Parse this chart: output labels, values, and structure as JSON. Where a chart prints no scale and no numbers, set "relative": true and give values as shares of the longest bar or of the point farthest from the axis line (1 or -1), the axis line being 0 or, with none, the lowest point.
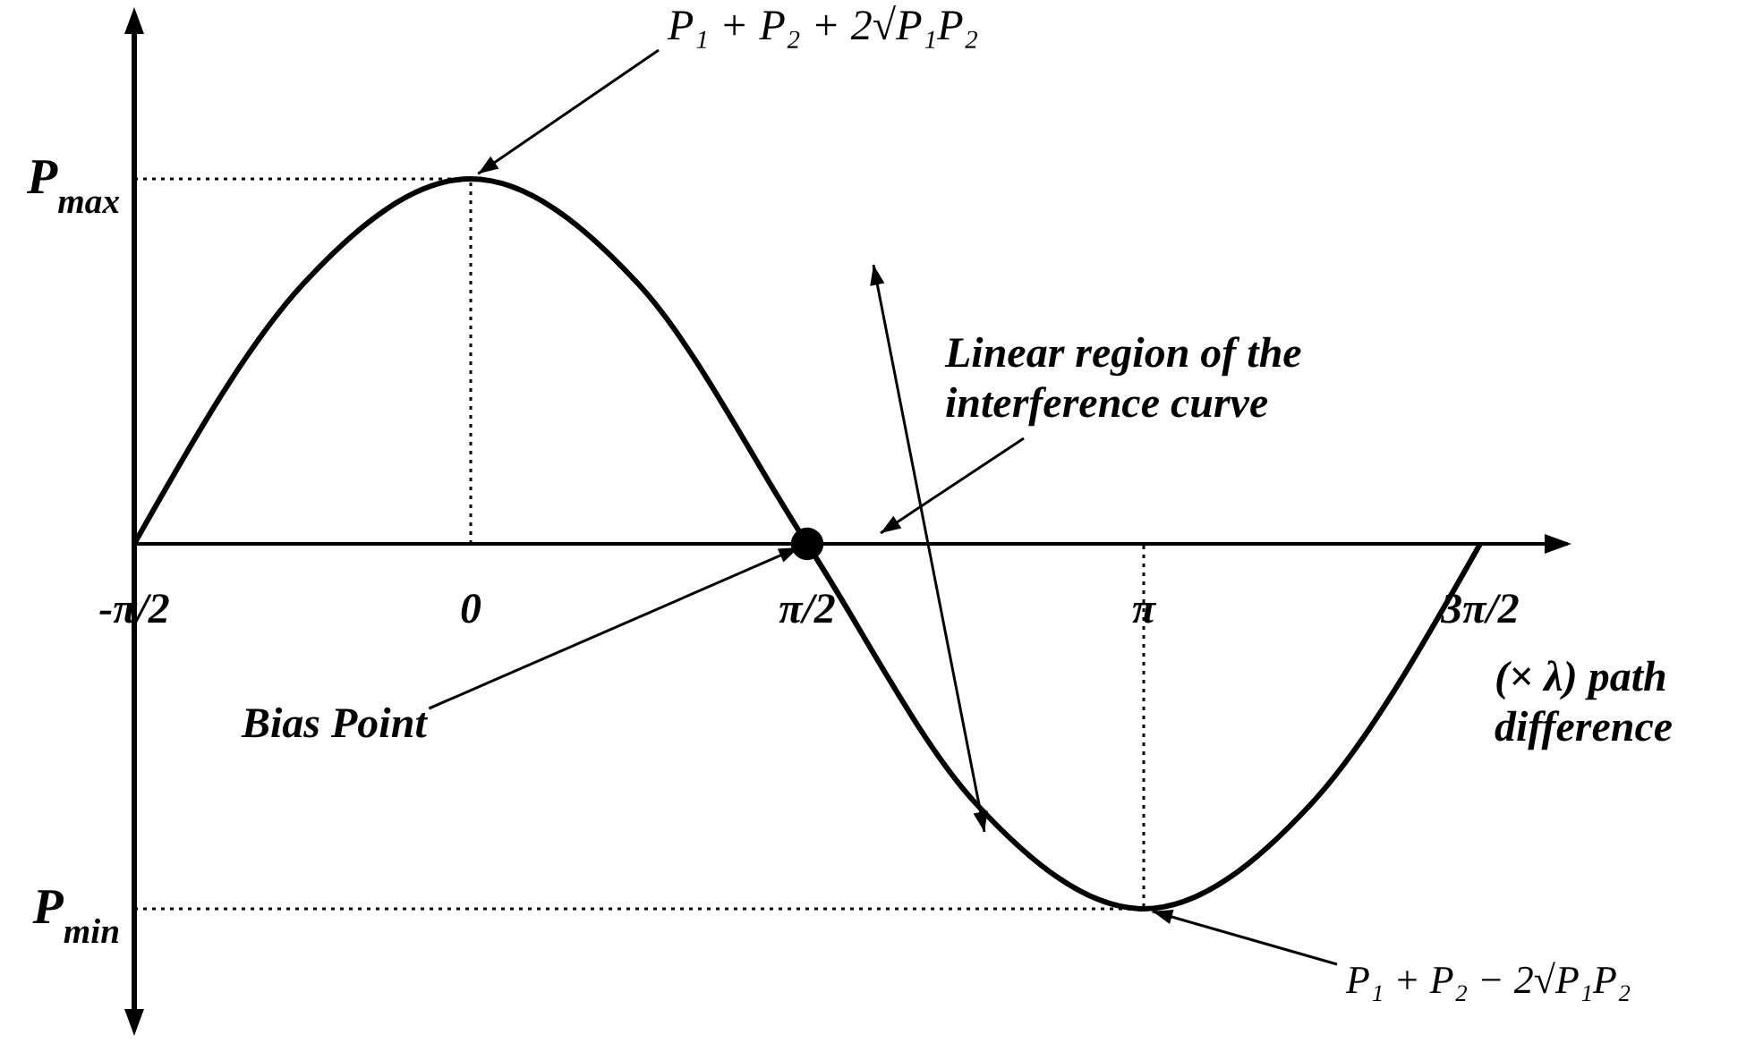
{
  "chart_data": {
    "type": "line",
    "relative": true,
    "xlabel": "(× λ) path difference",
    "categories": [
      "-π/2",
      null,
      "0",
      null,
      "π/2",
      null,
      "π",
      null,
      "3π/2"
    ],
    "series": [
      {
        "color": "#000000",
        "values": [
          0,
          0.71,
          1,
          0.71,
          0,
          -0.71,
          -1,
          -0.71,
          0
        ]
      },
      {
        "type": "scatter",
        "marker": "circle",
        "color": "#000000",
        "x": [
          "π/2"
        ],
        "values": [
          0
        ]
      }
    ],
    "annotations": [
      "P$_{max}$",
      "P$_{min}$",
      {
        "text": "P₁ + P₂ + 2√P₁P₂",
        "x": "0",
        "y": 1
      },
      {
        "text": "P₁ + P₂ − 2√P₁P₂",
        "x": "π",
        "y": -1
      },
      "Linear region of the interference curve",
      {
        "text": "Bias Point",
        "x": "π/2",
        "y": 0
      }
    ]
  }
}
